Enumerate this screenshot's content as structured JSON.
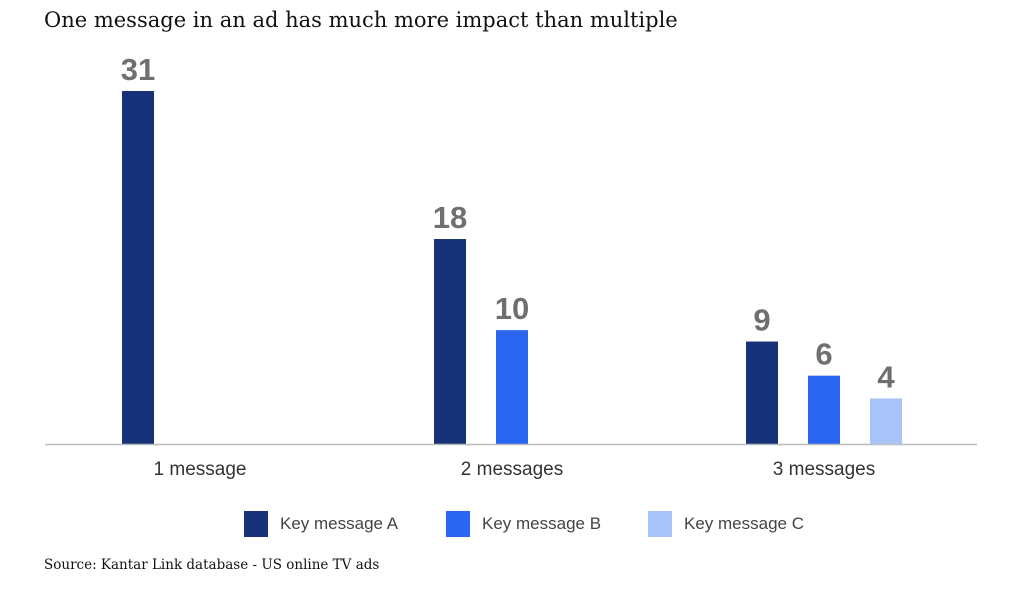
{
  "colors": {
    "series_a": "#173278",
    "series_b": "#2a66f0",
    "series_c": "#a8c3f8",
    "value_label": "#6f6f6f",
    "axis": "#bdbdbd",
    "tick_label": "#333333"
  },
  "source": "Source: Kantar Link database - US online TV ads",
  "chart_data": {
    "type": "bar",
    "title": "One message in an ad has much more impact than multiple",
    "xlabel": "",
    "ylabel": "",
    "ylim": [
      0,
      31
    ],
    "grid": false,
    "legend_position": "bottom",
    "categories": [
      "1 message",
      "2 messages",
      "3 messages"
    ],
    "series": [
      {
        "name": "Key message A",
        "values": [
          31,
          18,
          9
        ]
      },
      {
        "name": "Key message B",
        "values": [
          null,
          10,
          6
        ]
      },
      {
        "name": "Key message C",
        "values": [
          null,
          null,
          4
        ]
      }
    ]
  }
}
